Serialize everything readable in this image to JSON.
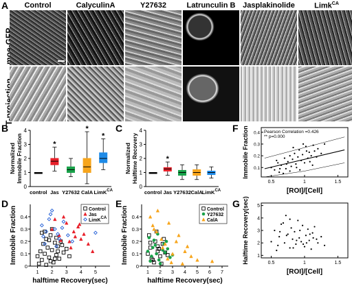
{
  "panel_A": {
    "letter": "A",
    "columns": [
      "Control",
      "CalyculinA",
      "Y27632",
      "Latrunculin B",
      "Jasplakinolide",
      "Limk^CA"
    ],
    "rows": [
      "moe-GFP",
      "T-projection"
    ]
  },
  "panel_B": {
    "letter": "B",
    "ylabel": "Normalized\nImmobile Fraction",
    "chart_data": {
      "type": "box",
      "categories": [
        "control",
        "Jas",
        "Y27632",
        "CalA",
        "LimK^CA"
      ],
      "medians": [
        1.0,
        1.8,
        1.2,
        1.4,
        2.0
      ],
      "q1": [
        1.0,
        1.55,
        1.0,
        1.0,
        1.7
      ],
      "q3": [
        1.0,
        2.0,
        1.4,
        2.0,
        2.4
      ],
      "whisker_low": [
        1.0,
        1.1,
        0.7,
        0.2,
        1.2
      ],
      "whisker_high": [
        1.0,
        2.8,
        2.0,
        3.9,
        3.4
      ],
      "significance": [
        "",
        "*",
        "",
        "*",
        "*"
      ],
      "colors": [
        "#000000",
        "#e8202a",
        "#19a24a",
        "#f7a51c",
        "#1e8be8"
      ],
      "ylim": [
        0,
        4
      ],
      "yticks": [
        "0",
        "1",
        "2",
        "3",
        "4"
      ]
    }
  },
  "panel_C": {
    "letter": "C",
    "ylabel": "Normalized\nHalftime Recovery",
    "chart_data": {
      "type": "box",
      "categories": [
        "control",
        "Jas",
        "Y27632",
        "CalA",
        "LimK^CA"
      ],
      "medians": [
        1.0,
        1.25,
        1.0,
        1.0,
        1.0
      ],
      "q1": [
        1.0,
        1.1,
        0.8,
        0.8,
        0.85
      ],
      "q3": [
        1.0,
        1.35,
        1.15,
        1.2,
        1.1
      ],
      "whisker_low": [
        1.0,
        0.8,
        0.5,
        0.5,
        0.6
      ],
      "whisker_high": [
        1.0,
        1.75,
        1.55,
        1.55,
        1.4
      ],
      "significance": [
        "",
        "*",
        "",
        "",
        ""
      ],
      "colors": [
        "#000000",
        "#e8202a",
        "#19a24a",
        "#f7a51c",
        "#1e8be8"
      ],
      "ylim": [
        0,
        4
      ],
      "yticks": [
        "0",
        "1",
        "2",
        "3",
        "4"
      ]
    }
  },
  "panel_D": {
    "letter": "D",
    "xlabel": "halftime Recovery(sec)",
    "ylabel": "Immobile Fraction",
    "chart_data": {
      "type": "scatter",
      "xlim": [
        0.5,
        6
      ],
      "ylim": [
        0,
        0.5
      ],
      "xticks": [
        "1",
        "2",
        "3",
        "4",
        "5"
      ],
      "yticks": [
        "0",
        "0.1",
        "0.2",
        "0.3",
        "0.4"
      ],
      "series": [
        {
          "name": "Control",
          "color": "#000000",
          "marker": "square",
          "x": [
            1.0,
            1.2,
            1.3,
            1.4,
            1.5,
            1.6,
            1.7,
            1.8,
            1.9,
            2.0,
            2.1,
            2.2,
            2.3,
            2.4,
            2.5,
            2.6,
            2.8,
            3.0,
            3.2,
            1.1,
            1.5,
            1.9,
            2.3,
            2.7,
            1.6,
            2.0,
            2.4,
            1.3,
            1.8,
            2.2
          ],
          "y": [
            0.08,
            0.12,
            0.05,
            0.18,
            0.1,
            0.22,
            0.15,
            0.07,
            0.25,
            0.13,
            0.03,
            0.19,
            0.09,
            0.16,
            0.06,
            0.2,
            0.11,
            0.14,
            0.08,
            0.02,
            0.28,
            0.04,
            0.23,
            0.17,
            0.01,
            0.3,
            0.12,
            0.27,
            0.21,
            0.06
          ]
        },
        {
          "name": "Jas",
          "color": "#e8202a",
          "marker": "triangle",
          "x": [
            2.0,
            2.5,
            3.0,
            3.2,
            3.5,
            3.8,
            4.0,
            4.2,
            4.5,
            2.8,
            3.3,
            3.6,
            2.2,
            4.8,
            3.9,
            2.6
          ],
          "y": [
            0.3,
            0.25,
            0.35,
            0.2,
            0.28,
            0.32,
            0.22,
            0.26,
            0.18,
            0.4,
            0.15,
            0.24,
            0.38,
            0.12,
            0.34,
            0.21
          ]
        },
        {
          "name": "LimK^CA",
          "color": "#1e5bd6",
          "marker": "diamond",
          "x": [
            1.3,
            1.6,
            1.9,
            2.2,
            2.5,
            2.8,
            3.1,
            1.5,
            2.0,
            2.4,
            2.7,
            3.4,
            1.8,
            2.3,
            5.0,
            1.4
          ],
          "y": [
            0.33,
            0.28,
            0.42,
            0.3,
            0.22,
            0.36,
            0.25,
            0.18,
            0.45,
            0.26,
            0.31,
            0.2,
            0.38,
            0.16,
            0.27,
            0.24
          ]
        }
      ]
    }
  },
  "panel_E": {
    "letter": "E",
    "xlabel": "halftime Recovery(sec)",
    "ylabel": "Immobile Fraction",
    "chart_data": {
      "type": "scatter",
      "xlim": [
        0.5,
        7.5
      ],
      "ylim": [
        0,
        0.5
      ],
      "xticks": [
        "1",
        "2",
        "3",
        "4",
        "5",
        "6",
        "7"
      ],
      "yticks": [
        "0",
        "0.1",
        "0.2",
        "0.3",
        "0.4"
      ],
      "series": [
        {
          "name": "Control",
          "color": "#000000",
          "marker": "square",
          "x": [
            1.0,
            1.2,
            1.4,
            1.6,
            1.8,
            2.0,
            2.2,
            2.4,
            1.1,
            1.5,
            1.9,
            2.3,
            1.3,
            1.7,
            2.1,
            2.6,
            1.2,
            1.8
          ],
          "y": [
            0.1,
            0.15,
            0.05,
            0.2,
            0.12,
            0.08,
            0.18,
            0.11,
            0.25,
            0.03,
            0.14,
            0.22,
            0.06,
            0.28,
            0.02,
            0.09,
            0.19,
            0.16
          ]
        },
        {
          "name": "Y27632",
          "color": "#19a24a",
          "marker": "circle",
          "x": [
            1.0,
            1.3,
            1.6,
            1.9,
            2.2,
            2.5,
            2.8,
            1.1,
            1.4,
            1.7,
            2.0,
            2.3,
            2.6,
            1.2,
            1.8,
            2.4,
            3.0,
            1.5
          ],
          "y": [
            0.12,
            0.08,
            0.17,
            0.05,
            0.13,
            0.2,
            0.07,
            0.23,
            0.15,
            0.1,
            0.02,
            0.18,
            0.14,
            0.04,
            0.26,
            0.11,
            0.09,
            0.21
          ]
        },
        {
          "name": "CalA",
          "color": "#f7a51c",
          "marker": "triangle",
          "x": [
            1.2,
            1.5,
            1.8,
            2.1,
            2.4,
            2.7,
            3.0,
            3.5,
            4.0,
            4.5,
            5.0,
            6.2,
            1.7,
            2.2,
            2.9,
            3.3,
            1.4,
            2.6,
            3.8,
            4.2
          ],
          "y": [
            0.4,
            0.3,
            0.45,
            0.22,
            0.18,
            0.35,
            0.1,
            0.25,
            0.12,
            0.08,
            0.05,
            0.04,
            0.28,
            0.15,
            0.03,
            0.2,
            0.33,
            0.06,
            0.02,
            0.16
          ]
        }
      ]
    }
  },
  "panel_F": {
    "letter": "F",
    "xlabel": "[ROI]/[Cell]",
    "ylabel": "Immobile Fraction",
    "annotation_1": "Pearson Correlation =0.426",
    "annotation_2": "** p=0.000",
    "chart_data": {
      "type": "scatter",
      "xlim": [
        0.35,
        1.65
      ],
      "ylim": [
        0.02,
        0.44
      ],
      "xticks": [
        "0.5",
        "1",
        "1.5"
      ],
      "yticks": [
        "0.1",
        "0.2",
        "0.3",
        "0.4"
      ],
      "fit": {
        "x": [
          0.4,
          1.6
        ],
        "y": [
          0.09,
          0.25
        ]
      },
      "ci_upper": {
        "x": [
          0.4,
          1.0,
          1.6
        ],
        "y": [
          0.18,
          0.27,
          0.36
        ]
      },
      "ci_lower": {
        "x": [
          0.4,
          1.0,
          1.6
        ],
        "y": [
          0.0,
          0.07,
          0.14
        ]
      },
      "points": {
        "x": [
          0.5,
          0.55,
          0.6,
          0.62,
          0.65,
          0.7,
          0.72,
          0.75,
          0.78,
          0.8,
          0.82,
          0.85,
          0.87,
          0.9,
          0.92,
          0.95,
          0.97,
          1.0,
          1.02,
          1.05,
          1.07,
          1.1,
          1.12,
          1.15,
          1.2,
          1.25,
          1.3,
          0.68,
          0.88,
          0.98,
          1.08,
          0.58,
          0.78,
          1.18,
          0.93,
          1.03,
          0.73,
          0.83,
          1.13,
          0.63
        ],
        "y": [
          0.1,
          0.08,
          0.14,
          0.06,
          0.12,
          0.18,
          0.09,
          0.15,
          0.2,
          0.11,
          0.17,
          0.22,
          0.13,
          0.19,
          0.25,
          0.16,
          0.21,
          0.14,
          0.28,
          0.18,
          0.23,
          0.2,
          0.12,
          0.24,
          0.26,
          0.22,
          0.3,
          0.05,
          0.1,
          0.3,
          0.15,
          0.16,
          0.07,
          0.19,
          0.08,
          0.24,
          0.13,
          0.27,
          0.29,
          0.09
        ]
      }
    }
  },
  "panel_G": {
    "letter": "G",
    "xlabel": "[ROI]/[Cell]",
    "ylabel": "Halftime Recovery(sec)",
    "chart_data": {
      "type": "scatter",
      "xlim": [
        0.35,
        1.65
      ],
      "ylim": [
        0.8,
        5.2
      ],
      "xticks": [
        "0.5",
        "1",
        "1.5"
      ],
      "yticks": [
        "1",
        "2",
        "3",
        "4",
        "5"
      ],
      "points": {
        "x": [
          0.5,
          0.55,
          0.6,
          0.62,
          0.65,
          0.7,
          0.72,
          0.75,
          0.78,
          0.8,
          0.82,
          0.85,
          0.87,
          0.9,
          0.92,
          0.95,
          0.97,
          1.0,
          1.02,
          1.05,
          1.07,
          1.1,
          1.12,
          1.15,
          1.2,
          1.25,
          1.3,
          0.68,
          0.88,
          0.98,
          1.08,
          0.58,
          0.78,
          1.18,
          0.93,
          1.03,
          0.73,
          0.83,
          1.13,
          0.63
        ],
        "y": [
          2.1,
          3.0,
          1.8,
          2.5,
          3.5,
          2.0,
          4.2,
          2.7,
          1.6,
          3.2,
          2.3,
          2.9,
          1.9,
          3.8,
          2.4,
          2.1,
          3.4,
          1.7,
          2.6,
          3.1,
          2.2,
          1.5,
          2.8,
          3.3,
          2.0,
          2.5,
          1.8,
          3.6,
          2.2,
          1.9,
          2.7,
          1.4,
          3.9,
          2.3,
          3.0,
          2.0,
          2.6,
          1.6,
          2.4,
          2.9
        ]
      }
    }
  }
}
